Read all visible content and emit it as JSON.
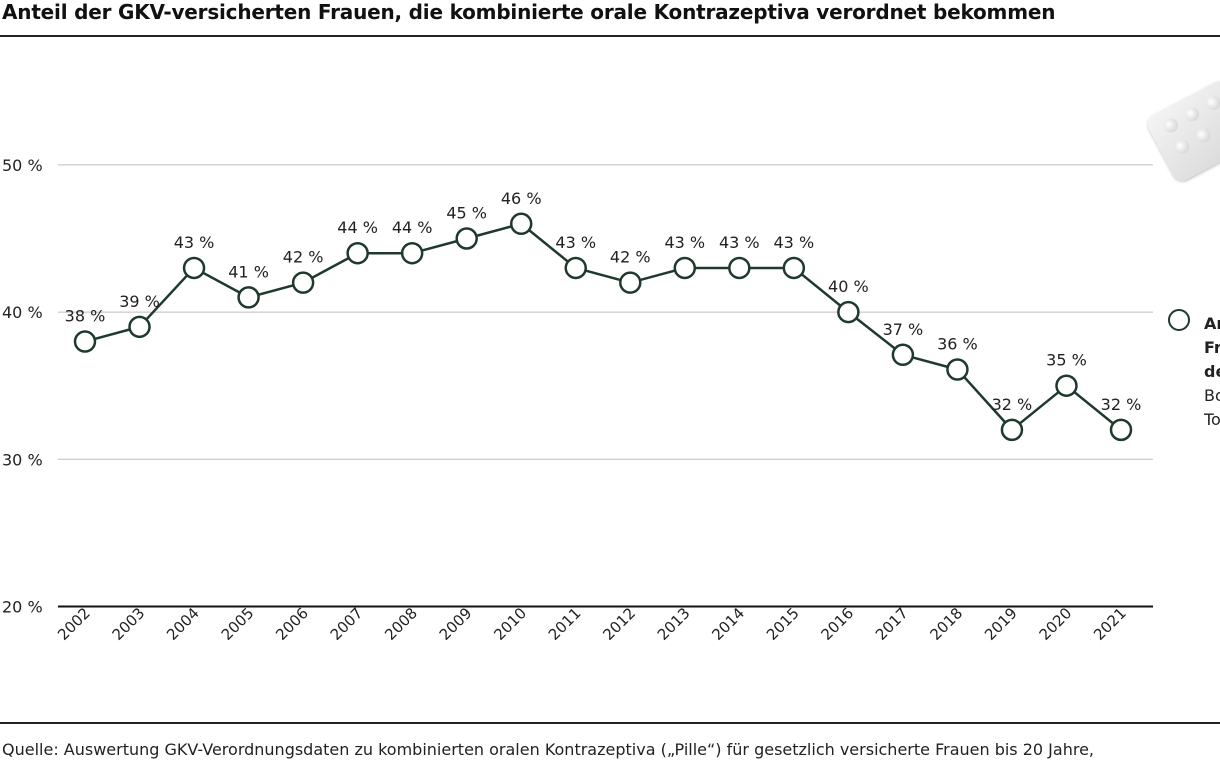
{
  "title": "Anteil der GKV-versicherten Frauen, die kombinierte orale Kontrazeptiva verordnet bekommen",
  "source": "Quelle: Auswertung GKV-Verordnungsdaten zu kombinierten oralen Kontrazeptiva („Pille“) für gesetzlich versicherte Frauen bis 20 Jahre,",
  "legend": {
    "line1": "An",
    "line2": "Fr",
    "line3": "de",
    "line4": "Bo",
    "line5": "To"
  },
  "colors": {
    "line": "#1f3a2c",
    "grid": "#bdbdbd",
    "axis": "#111111"
  },
  "chart_data": {
    "type": "line",
    "categories": [
      "2002",
      "2003",
      "2004",
      "2005",
      "2006",
      "2007",
      "2008",
      "2009",
      "2010",
      "2011",
      "2012",
      "2013",
      "2014",
      "2015",
      "2016",
      "2017",
      "2018",
      "2019",
      "2020",
      "2021"
    ],
    "values": [
      38,
      39,
      43,
      41,
      42,
      44,
      44,
      45,
      46,
      43,
      42,
      43,
      43,
      43,
      40,
      37,
      36,
      32,
      35,
      32
    ],
    "plotted_values": [
      38,
      39,
      43,
      41,
      42,
      44,
      44,
      45,
      46,
      43,
      42,
      43,
      43,
      43,
      40,
      37.1,
      36.1,
      32,
      35,
      32
    ],
    "data_labels": [
      "38 %",
      "39 %",
      "43 %",
      "41 %",
      "42 %",
      "44 %",
      "44 %",
      "45 %",
      "46 %",
      "43 %",
      "42 %",
      "43 %",
      "43 %",
      "43 %",
      "40 %",
      "37 %",
      "36 %",
      "32 %",
      "35 %",
      "32 %"
    ],
    "y_ticks": [
      20,
      30,
      40,
      50
    ],
    "y_tick_labels": [
      "20 %",
      "30 %",
      "40 %",
      "50 %"
    ],
    "ylim": [
      20,
      55
    ],
    "grid": true,
    "legend_position": "right"
  }
}
